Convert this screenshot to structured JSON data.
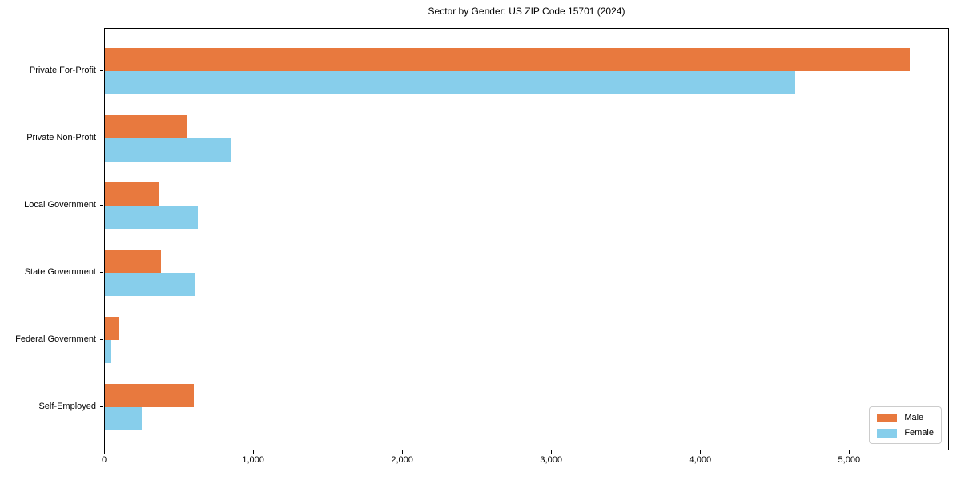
{
  "title": "Sector by Gender: US ZIP Code 15701 (2024)",
  "colors": {
    "male": "#e8793e",
    "female": "#87ceeb",
    "axis": "#000000",
    "legend_border": "#cccccc",
    "background": "#ffffff"
  },
  "legend": {
    "position": "lower right",
    "items": [
      {
        "label": "Male",
        "color": "#e8793e"
      },
      {
        "label": "Female",
        "color": "#87ceeb"
      }
    ]
  },
  "chart_data": {
    "type": "bar",
    "orientation": "horizontal",
    "title": "Sector by Gender: US ZIP Code 15701 (2024)",
    "xlabel": "",
    "ylabel": "",
    "categories": [
      "Private For-Profit",
      "Private Non-Profit",
      "Local Government",
      "State Government",
      "Federal Government",
      "Self-Employed"
    ],
    "series": [
      {
        "name": "Male",
        "color": "#e8793e",
        "values": [
          5400,
          550,
          360,
          375,
          95,
          595
        ]
      },
      {
        "name": "Female",
        "color": "#87ceeb",
        "values": [
          4630,
          850,
          625,
          600,
          45,
          245
        ]
      }
    ],
    "x_ticks": [
      0,
      1000,
      2000,
      3000,
      4000,
      5000
    ],
    "x_tick_labels": [
      "0",
      "1,000",
      "2,000",
      "3,000",
      "4,000",
      "5,000"
    ],
    "xlim": [
      0,
      5670
    ],
    "grid": false,
    "legend_position": "lower right"
  }
}
